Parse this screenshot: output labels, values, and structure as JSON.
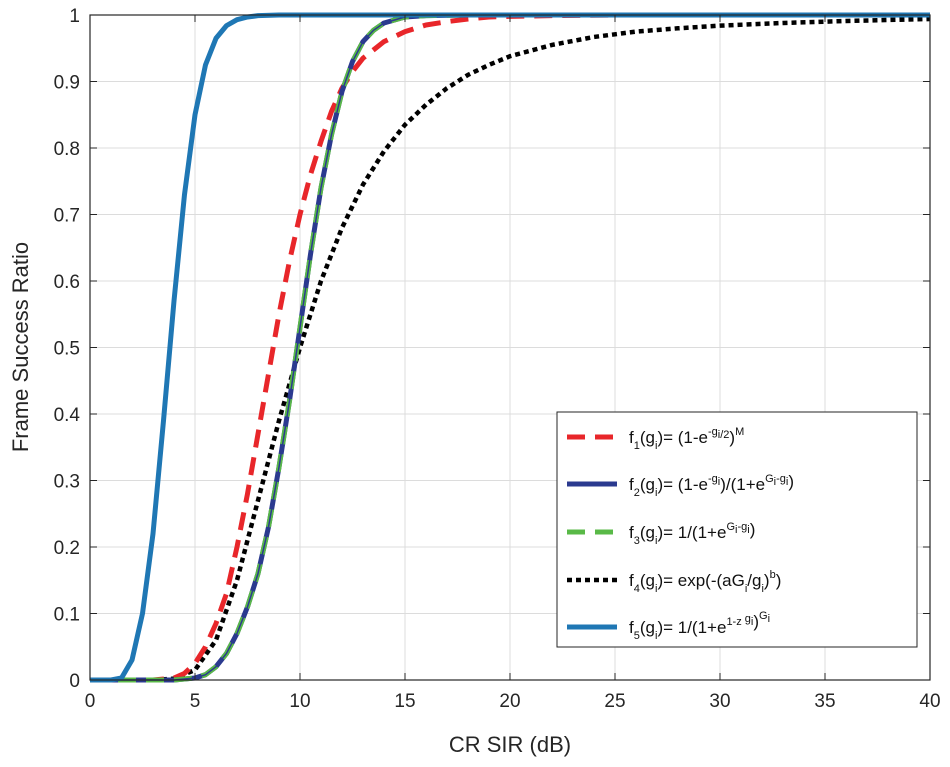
{
  "chart_data": {
    "type": "line",
    "title": "",
    "xlabel": "CR SIR (dB)",
    "ylabel": "Frame Success Ratio",
    "xlim": [
      0,
      40
    ],
    "ylim": [
      0,
      1
    ],
    "xticks": [
      "0",
      "5",
      "10",
      "15",
      "20",
      "25",
      "30",
      "35",
      "40"
    ],
    "yticks": [
      "0",
      "0.1",
      "0.2",
      "0.3",
      "0.4",
      "0.5",
      "0.6",
      "0.7",
      "0.8",
      "0.9",
      "1"
    ],
    "grid": true,
    "legend_position": "bottom-right",
    "series": [
      {
        "name": "f1(gi)= (1-e^-gi/2)^M",
        "legend": {
          "f": "f",
          "fsub": "1",
          "mid": "(g",
          "midsub": "i",
          "eq": ")= (1-e",
          "sup": "-g",
          "supsub": "i/2",
          "end": ")",
          "endsup": "M"
        },
        "color": "#e8262a",
        "style": "dashed",
        "x": [
          0,
          2,
          3,
          4,
          4.5,
          5,
          5.5,
          6,
          6.5,
          7,
          7.5,
          8,
          8.5,
          9,
          9.5,
          10,
          10.5,
          11,
          11.5,
          12,
          12.5,
          13,
          14,
          15,
          16,
          17,
          18,
          19,
          20,
          22,
          25,
          30,
          40
        ],
        "y": [
          0,
          0,
          0,
          0.003,
          0.01,
          0.025,
          0.05,
          0.085,
          0.13,
          0.2,
          0.28,
          0.37,
          0.46,
          0.55,
          0.63,
          0.7,
          0.76,
          0.81,
          0.855,
          0.89,
          0.915,
          0.935,
          0.96,
          0.975,
          0.985,
          0.99,
          0.994,
          0.997,
          0.998,
          0.999,
          1,
          1,
          1
        ]
      },
      {
        "name": "f2(gi)= (1-e^-gi)/(1+e^(Gi-gi))",
        "legend": {
          "f": "f",
          "fsub": "2",
          "mid": "(g",
          "midsub": "i",
          "eq": ")= (1-e",
          "sup": "-g",
          "supsub": "i",
          "end": ")/(1+e",
          "endsup": "G",
          "endsupsub": "i",
          "endsup2": "-g",
          "endsup2sub": "i",
          "close": ")"
        },
        "color": "#2b3a8f",
        "style": "solid",
        "x": [
          0,
          3,
          4,
          5,
          5.5,
          6,
          6.5,
          7,
          7.5,
          8,
          8.5,
          9,
          9.5,
          10,
          10.5,
          11,
          11.5,
          12,
          12.5,
          13,
          13.5,
          14,
          15,
          16,
          18,
          20,
          25,
          30,
          40
        ],
        "y": [
          0,
          0,
          0,
          0.003,
          0.008,
          0.02,
          0.04,
          0.07,
          0.11,
          0.16,
          0.23,
          0.32,
          0.42,
          0.53,
          0.64,
          0.74,
          0.82,
          0.885,
          0.93,
          0.96,
          0.977,
          0.988,
          0.997,
          0.999,
          1,
          1,
          1,
          1,
          1
        ]
      },
      {
        "name": "f3(gi)= 1/(1+e^(Gi-gi))",
        "legend": {
          "f": "f",
          "fsub": "3",
          "mid": "(g",
          "midsub": "i",
          "eq": ")= 1/(1+e",
          "sup": "G",
          "supsub": "i",
          "end": "",
          "endsup": "",
          "endsup2": "-g",
          "endsup2sub": "i",
          "close": ")"
        },
        "color": "#59b947",
        "style": "dashed",
        "x": [
          0,
          3,
          4,
          5,
          5.5,
          6,
          6.5,
          7,
          7.5,
          8,
          8.5,
          9,
          9.5,
          10,
          10.5,
          11,
          11.5,
          12,
          12.5,
          13,
          13.5,
          14,
          15,
          16,
          18,
          20,
          25,
          30,
          40
        ],
        "y": [
          0,
          0,
          0,
          0.003,
          0.008,
          0.02,
          0.04,
          0.07,
          0.11,
          0.16,
          0.23,
          0.32,
          0.42,
          0.53,
          0.64,
          0.74,
          0.82,
          0.885,
          0.93,
          0.96,
          0.977,
          0.988,
          0.997,
          0.999,
          1,
          1,
          1,
          1,
          1
        ]
      },
      {
        "name": "f4(gi)= exp(-(aGi/gi)^b)",
        "legend": {
          "f": "f",
          "fsub": "4",
          "mid": "(g",
          "midsub": "i",
          "eq": ")= exp(-(aG",
          "sup": "",
          "supsub": "",
          "eqsub": "i",
          "eq2": "/g",
          "eq2sub": "i",
          "end": ")",
          "endsup": "b",
          "close": ")"
        },
        "color": "#000000",
        "style": "dotted",
        "x": [
          0,
          2,
          3,
          4,
          5,
          6,
          7,
          8,
          9,
          10,
          11,
          12,
          13,
          14,
          15,
          16,
          17,
          18,
          19,
          20,
          22,
          24,
          26,
          28,
          30,
          33,
          36,
          40
        ],
        "y": [
          0,
          0,
          0,
          0.002,
          0.015,
          0.06,
          0.15,
          0.27,
          0.39,
          0.5,
          0.6,
          0.68,
          0.745,
          0.795,
          0.835,
          0.865,
          0.89,
          0.91,
          0.925,
          0.938,
          0.955,
          0.967,
          0.975,
          0.98,
          0.984,
          0.988,
          0.991,
          0.994
        ]
      },
      {
        "name": "f5(gi)= 1/(1+e^(1-z gi))^Gi",
        "legend": {
          "f": "f",
          "fsub": "5",
          "mid": "(g",
          "midsub": "i",
          "eq": ")= 1/(1+e",
          "sup": "1-z",
          "supsub": "",
          "sup2": "g",
          "sup2sub": "i",
          "end": ")",
          "endsup": "G",
          "endsupsub": "i"
        },
        "color": "#1f77b4",
        "style": "solid",
        "x": [
          0,
          1,
          1.5,
          2,
          2.5,
          3,
          3.5,
          4,
          4.5,
          5,
          5.5,
          6,
          6.5,
          7,
          7.5,
          8,
          9,
          10,
          12,
          15,
          20,
          30,
          40
        ],
        "y": [
          0,
          0,
          0.003,
          0.03,
          0.1,
          0.22,
          0.39,
          0.57,
          0.73,
          0.85,
          0.925,
          0.965,
          0.984,
          0.993,
          0.997,
          0.999,
          1,
          1,
          1,
          1,
          1,
          1,
          1
        ]
      }
    ]
  }
}
